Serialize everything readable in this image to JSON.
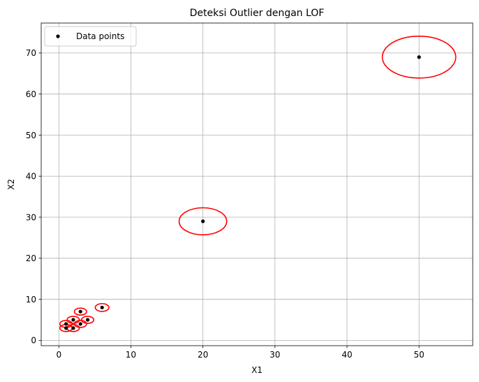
{
  "chart_data": {
    "type": "scatter",
    "title": "Deteksi Outlier dengan LOF",
    "xlabel": "X1",
    "ylabel": "X2",
    "xlim": [
      -2.45,
      57.45
    ],
    "ylim": [
      -1.3,
      77.3
    ],
    "xticks": [
      0,
      10,
      20,
      30,
      40,
      50
    ],
    "yticks": [
      0,
      10,
      20,
      30,
      40,
      50,
      60,
      70
    ],
    "grid": true,
    "legend": {
      "placement": "top-left",
      "entries": [
        "Data points"
      ]
    },
    "series": [
      {
        "name": "Data points",
        "color": "#000000",
        "points": [
          {
            "x": 1,
            "y": 3
          },
          {
            "x": 2,
            "y": 3
          },
          {
            "x": 1,
            "y": 4
          },
          {
            "x": 3,
            "y": 4
          },
          {
            "x": 2,
            "y": 5
          },
          {
            "x": 4,
            "y": 5
          },
          {
            "x": 3,
            "y": 7
          },
          {
            "x": 6,
            "y": 8
          },
          {
            "x": 20,
            "y": 29
          },
          {
            "x": 50,
            "y": 69
          }
        ]
      }
    ],
    "lof_circles": {
      "color": "#ff0000",
      "radii": [
        0.85,
        0.85,
        0.85,
        0.85,
        0.85,
        0.85,
        0.85,
        0.95,
        3.3,
        5.1
      ]
    }
  }
}
